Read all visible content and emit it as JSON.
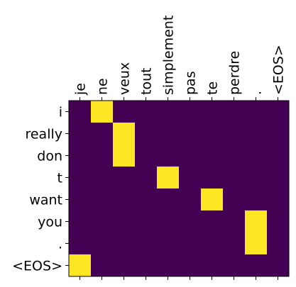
{
  "chart_data": {
    "type": "heatmap",
    "title": "",
    "xlabel": "",
    "ylabel": "",
    "x": [
      "je",
      "ne",
      "veux",
      "tout",
      "simplement",
      "pas",
      "te",
      "perdre",
      ".",
      "<EOS>"
    ],
    "y": [
      "i",
      "really",
      "don",
      "t",
      "want",
      "you",
      ".",
      "<EOS>"
    ],
    "values": [
      [
        0,
        1,
        0,
        0,
        0,
        0,
        0,
        0,
        0,
        0
      ],
      [
        0,
        0,
        1,
        0,
        0,
        0,
        0,
        0,
        0,
        0
      ],
      [
        0,
        0,
        1,
        0,
        0,
        0,
        0,
        0,
        0,
        0
      ],
      [
        0,
        0,
        0,
        0,
        1,
        0,
        0,
        0,
        0,
        0
      ],
      [
        0,
        0,
        0,
        0,
        0,
        0,
        1,
        0,
        0,
        0
      ],
      [
        0,
        0,
        0,
        0,
        0,
        0,
        0,
        0,
        1,
        0
      ],
      [
        0,
        0,
        0,
        0,
        0,
        0,
        0,
        0,
        1,
        0
      ],
      [
        1,
        0,
        0,
        0,
        0,
        0,
        0,
        0,
        0,
        0
      ]
    ],
    "vmin": 0,
    "vmax": 1,
    "colormap": "viridis",
    "colors": {
      "low": "#440154",
      "high": "#fde725"
    },
    "x_ticks_position": "top",
    "x_tick_rotation": 90,
    "grid": false
  }
}
